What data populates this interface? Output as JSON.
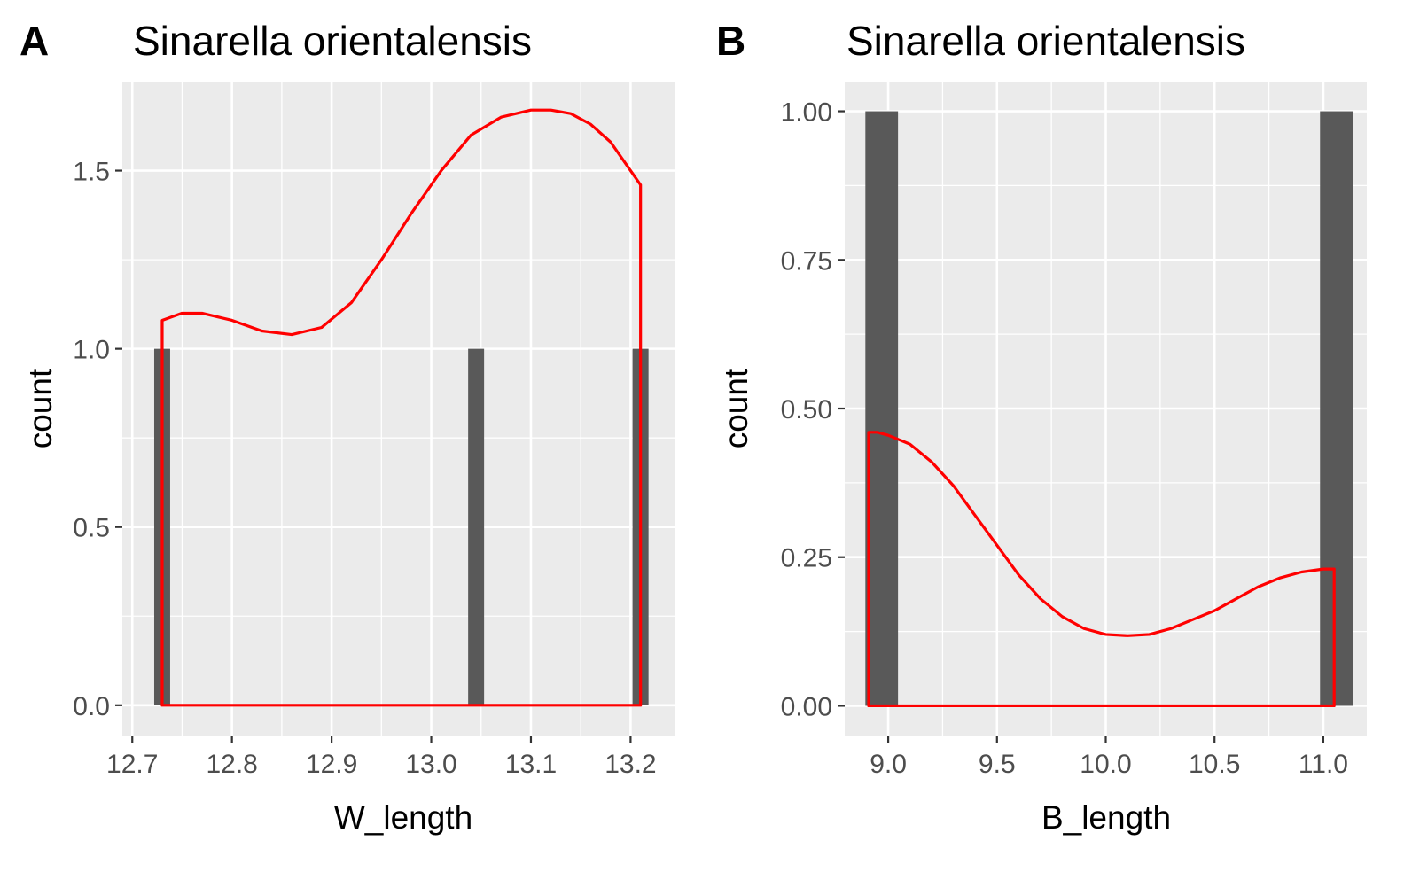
{
  "chart_data": [
    {
      "type": "bar",
      "panel_label": "A",
      "title": "Sinarella orientalensis",
      "xlabel": "W_length",
      "ylabel": "count",
      "xlim": [
        12.69,
        13.245
      ],
      "ylim": [
        -0.085,
        1.75
      ],
      "x_ticks": [
        12.7,
        12.8,
        12.9,
        13.0,
        13.1,
        13.2
      ],
      "x_tick_labels": [
        "12.7",
        "12.8",
        "12.9",
        "13.0",
        "13.1",
        "13.2"
      ],
      "y_ticks": [
        0.0,
        0.5,
        1.0,
        1.5
      ],
      "y_tick_labels": [
        "0.0",
        "0.5",
        "1.0",
        "1.5"
      ],
      "bar_width": 0.016,
      "bars": [
        {
          "x": 12.73,
          "count": 1
        },
        {
          "x": 13.045,
          "count": 1
        },
        {
          "x": 13.21,
          "count": 1
        }
      ],
      "bar_color": "#595959",
      "density_color": "#ff0000",
      "density": {
        "x": [
          12.73,
          12.75,
          12.77,
          12.8,
          12.83,
          12.86,
          12.89,
          12.92,
          12.95,
          12.98,
          13.01,
          13.04,
          13.07,
          13.1,
          13.12,
          13.14,
          13.16,
          13.18,
          13.2,
          13.21
        ],
        "y": [
          1.08,
          1.1,
          1.1,
          1.08,
          1.05,
          1.04,
          1.06,
          1.13,
          1.25,
          1.38,
          1.5,
          1.6,
          1.65,
          1.67,
          1.67,
          1.66,
          1.63,
          1.58,
          1.5,
          1.46
        ]
      },
      "grid": true
    },
    {
      "type": "bar",
      "panel_label": "B",
      "title": "Sinarella orientalensis",
      "xlabel": "B_length",
      "ylabel": "count",
      "xlim": [
        8.8,
        11.2
      ],
      "ylim": [
        -0.05,
        1.05
      ],
      "x_ticks": [
        9.0,
        9.5,
        10.0,
        10.5,
        11.0
      ],
      "x_tick_labels": [
        "9.0",
        "9.5",
        "10.0",
        "10.5",
        "11.0"
      ],
      "y_ticks": [
        0.0,
        0.25,
        0.5,
        0.75,
        1.0
      ],
      "y_tick_labels": [
        "0.00",
        "0.25",
        "0.50",
        "0.75",
        "1.00"
      ],
      "bar_width": 0.15,
      "bars": [
        {
          "x": 8.97,
          "count": 1
        },
        {
          "x": 11.06,
          "count": 1
        }
      ],
      "bar_color": "#595959",
      "density_color": "#ff0000",
      "density": {
        "x": [
          8.91,
          8.95,
          9.0,
          9.1,
          9.2,
          9.3,
          9.4,
          9.5,
          9.6,
          9.7,
          9.8,
          9.9,
          10.0,
          10.1,
          10.2,
          10.3,
          10.4,
          10.5,
          10.6,
          10.7,
          10.8,
          10.9,
          11.0,
          11.05
        ],
        "y": [
          0.46,
          0.46,
          0.455,
          0.44,
          0.41,
          0.37,
          0.32,
          0.27,
          0.22,
          0.18,
          0.15,
          0.13,
          0.12,
          0.118,
          0.12,
          0.13,
          0.145,
          0.16,
          0.18,
          0.2,
          0.215,
          0.225,
          0.23,
          0.23
        ]
      },
      "grid": true
    }
  ]
}
